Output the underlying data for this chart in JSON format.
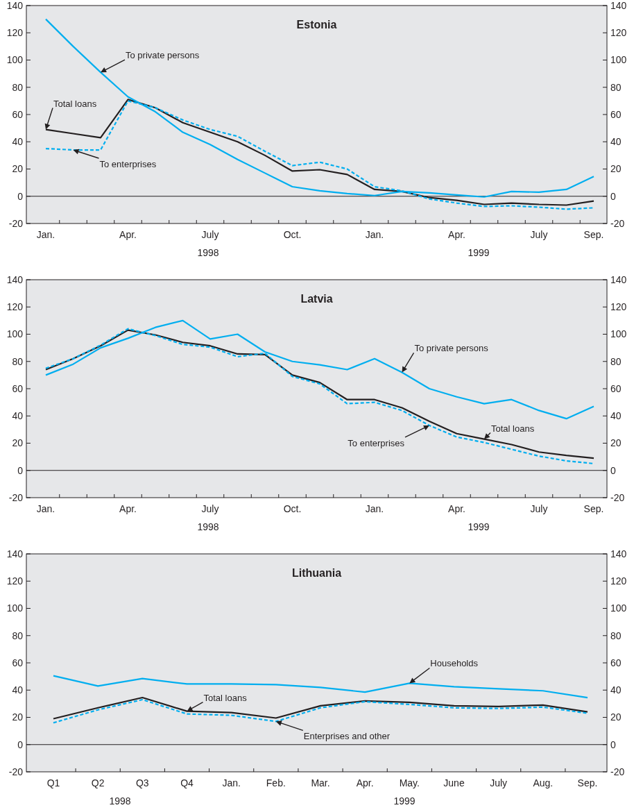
{
  "chart_data": [
    {
      "type": "line",
      "title": "Estonia",
      "categories": [
        "Jan.",
        null,
        null,
        "Apr.",
        null,
        null,
        "July",
        null,
        null,
        "Oct.",
        null,
        null,
        "Jan.",
        null,
        null,
        "Apr.",
        null,
        null,
        "July",
        null,
        "Sep."
      ],
      "series": [
        {
          "name": "Total loans",
          "color": "#231f20",
          "line_style": "solid",
          "values": [
            49,
            46,
            43,
            71,
            65,
            54,
            47,
            40,
            30,
            18.5,
            19.5,
            16,
            5,
            3.5,
            -1,
            -3,
            -6,
            -5,
            -6,
            -6.5,
            -3.5
          ]
        },
        {
          "name": "To private persons",
          "color": "#00aeef",
          "line_style": "solid",
          "values": [
            130,
            110,
            91,
            73,
            62,
            47,
            38,
            27,
            17,
            7,
            4,
            2,
            0.5,
            3.5,
            2.5,
            1,
            -0.5,
            3.5,
            3,
            5,
            14.5
          ]
        },
        {
          "name": "To enterprises",
          "color": "#00aeef",
          "line_style": "dashed",
          "values": [
            35,
            34,
            34,
            70,
            65,
            56,
            49,
            44,
            33,
            22.5,
            25,
            20,
            7,
            4,
            -2,
            -5,
            -7.5,
            -7,
            -8,
            -9.5,
            -8.5
          ]
        }
      ],
      "ylim": [
        -20,
        140
      ],
      "yticks": [
        -20,
        0,
        20,
        40,
        60,
        80,
        100,
        120,
        140
      ],
      "y2lim": [
        -20,
        140
      ],
      "y2ticks": [
        -20,
        0,
        20,
        40,
        60,
        80,
        100,
        120,
        140
      ],
      "ref_lines": [
        {
          "axis": "y",
          "value": 0,
          "color": "#231f20"
        }
      ],
      "annotations": [
        "1998",
        "1999"
      ],
      "grid": false,
      "legend": false,
      "marker": "none"
    },
    {
      "type": "line",
      "title": "Latvia",
      "categories": [
        "Jan.",
        null,
        null,
        "Apr.",
        null,
        null,
        "July",
        null,
        null,
        "Oct.",
        null,
        null,
        "Jan.",
        null,
        null,
        "Apr.",
        null,
        null,
        "July",
        null,
        "Sep."
      ],
      "series": [
        {
          "name": "Total loans",
          "color": "#231f20",
          "line_style": "solid",
          "values": [
            74,
            82,
            91.5,
            103,
            99.5,
            94,
            91.5,
            85.5,
            85,
            70,
            64.5,
            52,
            52,
            46,
            36,
            27,
            23,
            19,
            13.5,
            11,
            9
          ]
        },
        {
          "name": "To private persons",
          "color": "#00aeef",
          "line_style": "solid",
          "values": [
            70,
            78,
            90,
            97,
            105,
            110,
            96.5,
            100,
            87,
            80,
            77.5,
            74,
            82,
            72,
            60,
            54,
            49,
            52,
            44,
            38,
            47
          ]
        },
        {
          "name": "To enterprises",
          "color": "#00aeef",
          "line_style": "dashed",
          "values": [
            75,
            82,
            92,
            104,
            99,
            92.5,
            90.5,
            83.5,
            86,
            69,
            63.5,
            49,
            50,
            44,
            33,
            24.5,
            20.5,
            15.5,
            10.5,
            7,
            5
          ]
        }
      ],
      "ylim": [
        -20,
        140
      ],
      "yticks": [
        -20,
        0,
        20,
        40,
        60,
        80,
        100,
        120,
        140
      ],
      "y2lim": [
        -20,
        140
      ],
      "y2ticks": [
        -20,
        0,
        20,
        40,
        60,
        80,
        100,
        120,
        140
      ],
      "ref_lines": [
        {
          "axis": "y",
          "value": 0,
          "color": "#231f20"
        }
      ],
      "annotations": [
        "1998",
        "1999"
      ],
      "grid": false,
      "legend": false,
      "marker": "none"
    },
    {
      "type": "line",
      "title": "Lithuania",
      "categories": [
        "Q1",
        "Q2",
        "Q3",
        "Q4",
        "Jan.",
        "Feb.",
        "Mar.",
        "Apr.",
        "May.",
        "June",
        "July",
        "Aug.",
        "Sep."
      ],
      "series": [
        {
          "name": "Households",
          "color": "#00aeef",
          "line_style": "solid",
          "values": [
            50.5,
            43,
            48.5,
            44.5,
            44.5,
            44,
            42,
            38.5,
            45,
            42.5,
            41,
            39.5,
            34.5
          ]
        },
        {
          "name": "Total loans",
          "color": "#231f20",
          "line_style": "solid",
          "values": [
            19,
            27,
            34.5,
            24.5,
            23.5,
            19.5,
            28.5,
            32,
            31,
            28.5,
            28,
            29,
            24
          ]
        },
        {
          "name": "Enterprises and other",
          "color": "#00aeef",
          "line_style": "dashed",
          "values": [
            16,
            25.5,
            33,
            22.5,
            21.5,
            17,
            27,
            31.5,
            29.5,
            27,
            26.5,
            27.5,
            23
          ]
        }
      ],
      "ylim": [
        -20,
        140
      ],
      "yticks": [
        -20,
        0,
        20,
        40,
        60,
        80,
        100,
        120,
        140
      ],
      "y2lim": [
        -20,
        140
      ],
      "y2ticks": [
        -20,
        0,
        20,
        40,
        60,
        80,
        100,
        120,
        140
      ],
      "ref_lines": [
        {
          "axis": "y",
          "value": 0,
          "color": "#231f20"
        }
      ],
      "annotations": [
        "1998",
        "1999"
      ],
      "grid": false,
      "legend": false,
      "marker": "none"
    }
  ]
}
